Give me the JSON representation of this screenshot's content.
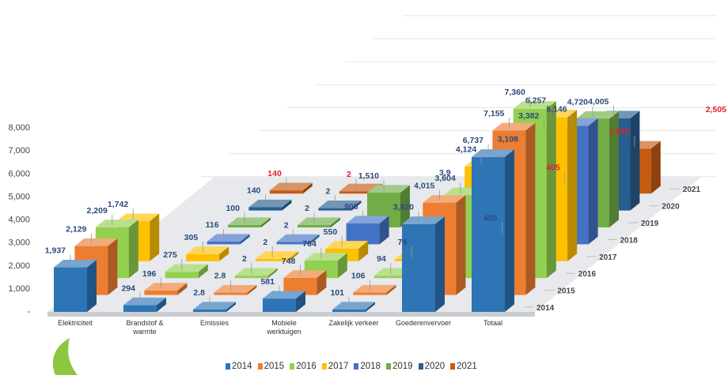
{
  "chart_data": {
    "type": "bar",
    "subtype": "3d-column-grouped",
    "categories": [
      "Elektriciteit",
      "Brandstof & warmte",
      "Emissies",
      "Mobiele werktuigen",
      "Zakelijk verkeer",
      "Goederenvervoer",
      "Totaal"
    ],
    "category_labels": [
      [
        "Elektriciteit"
      ],
      [
        "Brandstof &",
        "warmte"
      ],
      [
        "Emissies"
      ],
      [
        "Mobiele",
        "werktuigen"
      ],
      [
        "Zakelijk verkeer"
      ],
      [
        "Goederenvervoer"
      ],
      [
        "Totaal"
      ]
    ],
    "series": [
      {
        "name": "2014",
        "color": "#2e75b6",
        "values": [
          1937,
          294,
          2.8,
          581,
          101,
          3820,
          6737
        ],
        "labels": [
          "1,937",
          "294",
          "2.8",
          "581",
          "101",
          "3,820",
          "6,737"
        ]
      },
      {
        "name": "2015",
        "color": "#ed7d31",
        "values": [
          2129,
          196,
          2.8,
          748,
          106,
          4015,
          7155
        ],
        "labels": [
          "2,129",
          "196",
          "2.8",
          "748",
          "106",
          "4,015",
          "7,155"
        ]
      },
      {
        "name": "2016",
        "color": "#92d050",
        "values": [
          2209,
          275,
          2,
          764,
          94,
          3604,
          7360
        ],
        "labels": [
          "2,209",
          "275",
          "2",
          "764",
          "94",
          "3,604",
          "7,360"
        ]
      },
      {
        "name": "2017",
        "color": "#ffc000",
        "values": [
          1742,
          305,
          2,
          550,
          74,
          4124,
          6257
        ],
        "labels": [
          "1,742",
          "305",
          "2",
          "550",
          "74",
          "4,124",
          "6,257"
        ]
      },
      {
        "name": "2018",
        "color": "#4472c4",
        "values": [
          0,
          116,
          2,
          906,
          0,
          405,
          5146
        ],
        "labels": [
          "",
          "116",
          "2",
          "906",
          "",
          "405",
          "5,146"
        ]
      },
      {
        "name": "2019",
        "color": "#70ad47",
        "values": [
          0,
          100,
          2,
          1510,
          0,
          3108,
          4720
        ],
        "labels": [
          "",
          "100",
          "2",
          "1,510",
          "",
          "3,108",
          "4,720"
        ]
      },
      {
        "name": "2020",
        "color": "#255e91",
        "values": [
          0,
          140,
          2,
          0,
          0,
          3382,
          4005
        ],
        "labels": [
          "",
          "140",
          "2",
          "",
          "",
          "3,382",
          "4,005"
        ]
      },
      {
        "name": "2021",
        "color": "#c55a11",
        "values": [
          0,
          140,
          2,
          0,
          0,
          405,
          1958
        ],
        "labels": [
          "",
          "140",
          "2",
          "",
          "",
          "405",
          "1,958"
        ]
      }
    ],
    "extra_labels": [
      "3,9",
      "2,505"
    ],
    "red_labels": [
      "140",
      "2",
      "405",
      "1,958",
      "2,505"
    ],
    "y_ticks": [
      "-",
      "1,000",
      "2,000",
      "3,000",
      "4,000",
      "5,000",
      "6,000",
      "7,000",
      "8,000"
    ],
    "ylim": [
      0,
      8000
    ],
    "depth_labels": [
      "2014",
      "2015",
      "2016",
      "2017",
      "2018",
      "2019",
      "2020",
      "2021"
    ],
    "grid": true,
    "legend_position": "bottom"
  }
}
